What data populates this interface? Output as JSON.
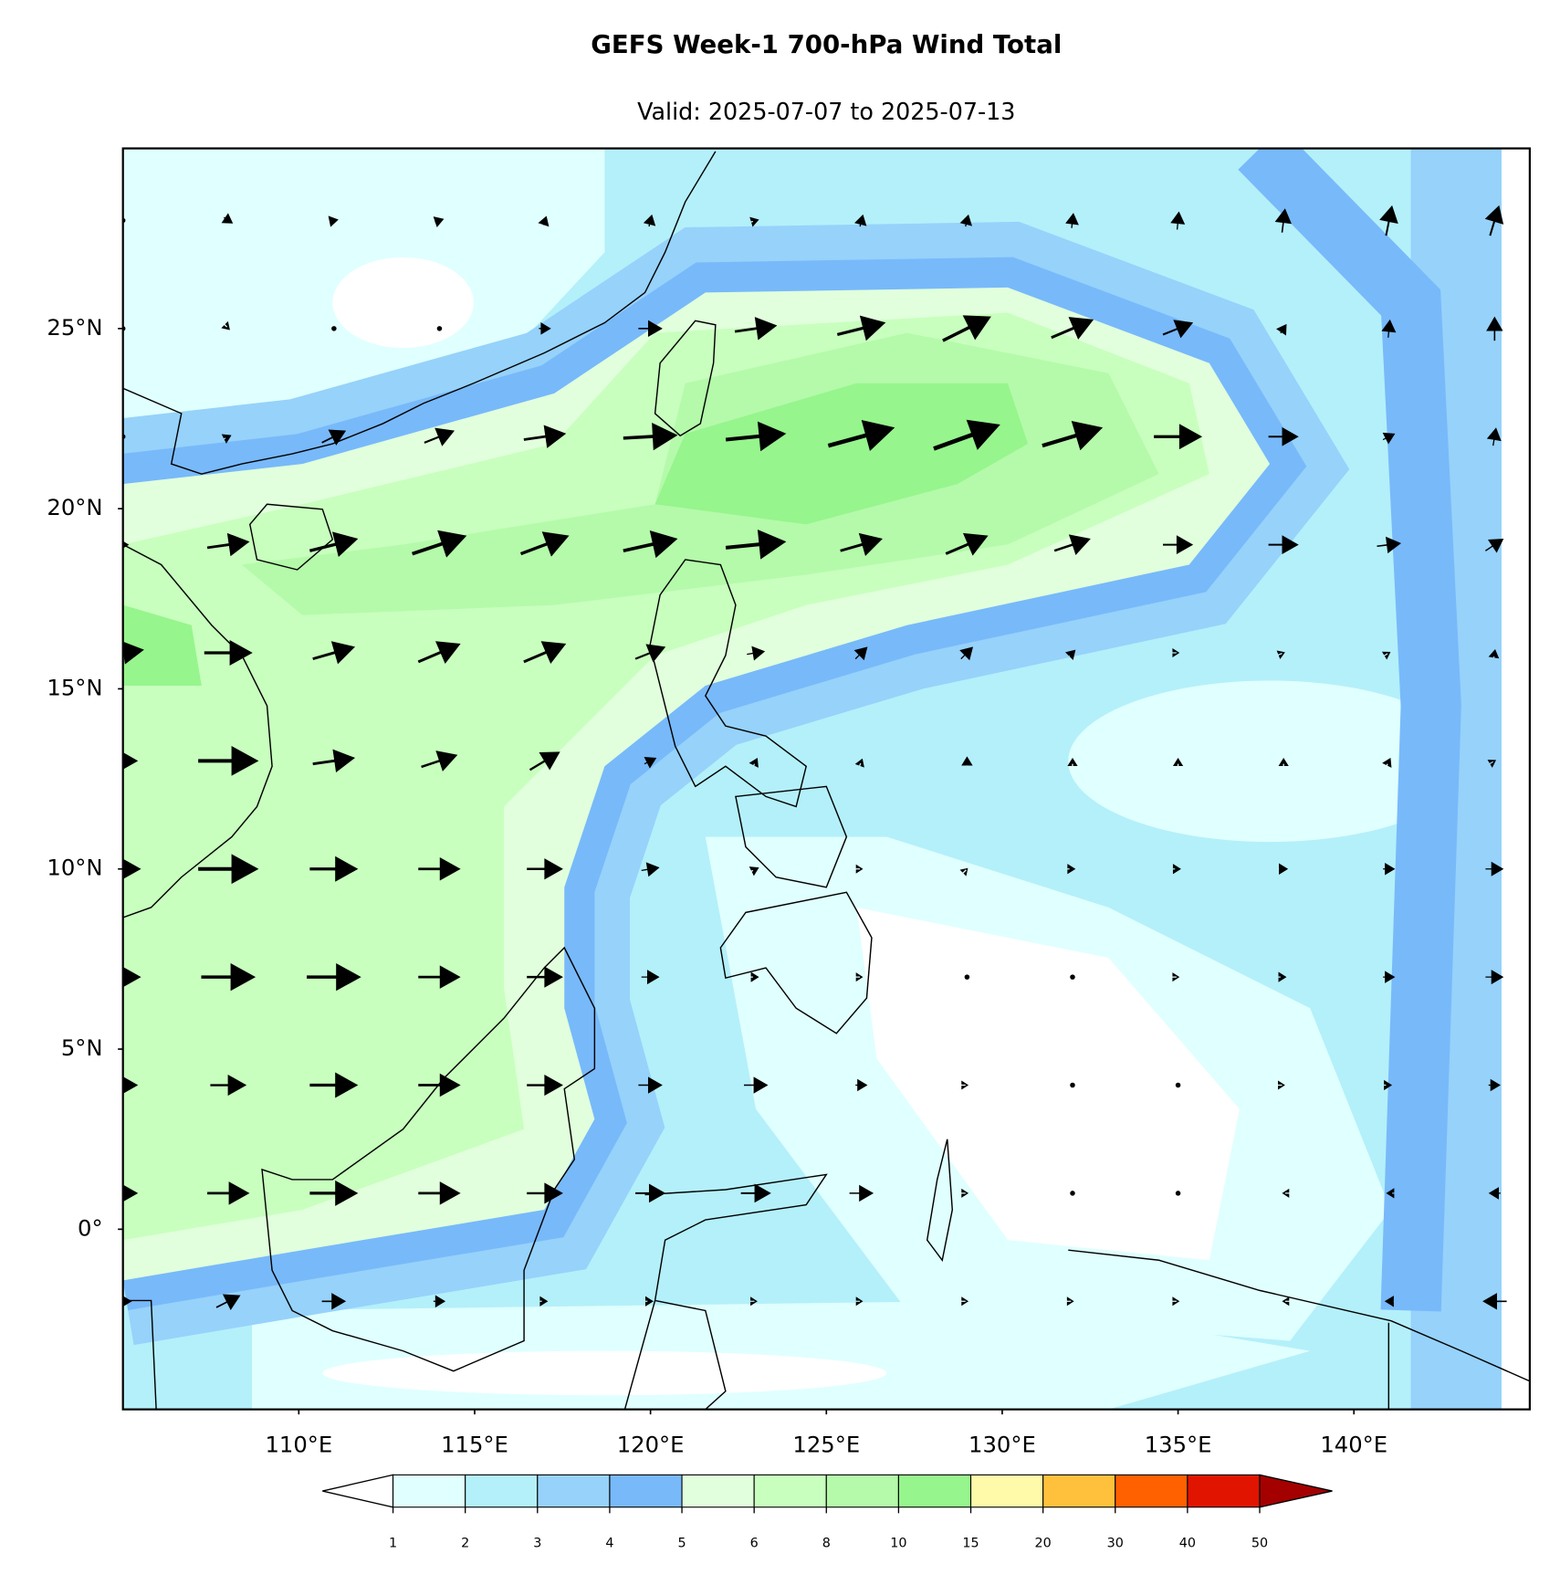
{
  "header": {
    "title": "GEFS Week-1 700-hPa Wind Total",
    "subtitle": "Valid: 2025-07-07 to 2025-07-13"
  },
  "map": {
    "xlim": [
      105,
      145
    ],
    "ylim": [
      -5,
      30
    ],
    "xticks": [
      {
        "value": 110,
        "label": "110°E"
      },
      {
        "value": 115,
        "label": "115°E"
      },
      {
        "value": 120,
        "label": "120°E"
      },
      {
        "value": 125,
        "label": "125°E"
      },
      {
        "value": 130,
        "label": "130°E"
      },
      {
        "value": 135,
        "label": "135°E"
      },
      {
        "value": 140,
        "label": "140°E"
      }
    ],
    "yticks": [
      {
        "value": 0,
        "label": "0°"
      },
      {
        "value": 5,
        "label": "5°N"
      },
      {
        "value": 10,
        "label": "10°N"
      },
      {
        "value": 15,
        "label": "15°N"
      },
      {
        "value": 20,
        "label": "20°N"
      },
      {
        "value": 25,
        "label": "25°N"
      }
    ]
  },
  "colorbar": {
    "levels": [
      1,
      2,
      3,
      4,
      5,
      6,
      8,
      10,
      15,
      20,
      30,
      40,
      50
    ],
    "colors": [
      "#ffffff",
      "#e0ffff",
      "#b4f0fa",
      "#96d2fa",
      "#78b9fa",
      "#e1ffdc",
      "#c8ffbe",
      "#b4faaa",
      "#96f58c",
      "#fffaaa",
      "#ffc03c",
      "#ff6000",
      "#e11400",
      "#a50000"
    ]
  },
  "wind": {
    "lons": [
      105,
      108,
      111,
      114,
      117,
      120,
      123,
      126,
      129,
      132,
      135,
      138,
      141,
      144
    ],
    "lats": [
      28,
      25,
      22,
      19,
      16,
      13,
      10,
      7,
      4,
      1,
      -2
    ],
    "u": [
      [
        0,
        1.5,
        1.5,
        1.5,
        0.5,
        0.5,
        1,
        0.5,
        0.5,
        0.3,
        0.3,
        0.5,
        1,
        1.5
      ],
      [
        0,
        0.5,
        0,
        0,
        2,
        4,
        7,
        8,
        8,
        7,
        5,
        1,
        0.3,
        0
      ],
      [
        0,
        1,
        4,
        5,
        7,
        9,
        10,
        11,
        11,
        10,
        8,
        5,
        2,
        0.5
      ],
      [
        2,
        7,
        8,
        9,
        8,
        9,
        10,
        7,
        7,
        6,
        5,
        5,
        4,
        3
      ],
      [
        7,
        8,
        7,
        7,
        7,
        5,
        3,
        2,
        2,
        1,
        0.5,
        0.5,
        0.5,
        0.2
      ],
      [
        5,
        10,
        7,
        6,
        5,
        2,
        0.5,
        0.3,
        0,
        0,
        0,
        0,
        0.5,
        0.5
      ],
      [
        6,
        10,
        8,
        7,
        6,
        3,
        1,
        0.5,
        0.3,
        1,
        1,
        1.5,
        2,
        3
      ],
      [
        6,
        9,
        9,
        7,
        6,
        3,
        1,
        0.5,
        0,
        0,
        0.5,
        1,
        2,
        3
      ],
      [
        5,
        6,
        8,
        7,
        6,
        4,
        4,
        2,
        0.5,
        0,
        0,
        0.5,
        1,
        2
      ],
      [
        5,
        7,
        8,
        7,
        6,
        5,
        5,
        4,
        0.5,
        0,
        0,
        -0.5,
        -1,
        -2
      ],
      [
        3,
        4,
        4,
        2,
        1,
        1,
        0.5,
        0.5,
        0.5,
        0.5,
        0.5,
        -0.5,
        -1.5,
        -4
      ]
    ],
    "v": [
      [
        0,
        -1,
        0.3,
        0.5,
        1.5,
        2,
        0.3,
        2,
        2,
        2.5,
        3,
        4,
        5,
        5
      ],
      [
        0,
        -0.5,
        0,
        0,
        0,
        0,
        1,
        2,
        4,
        3,
        2,
        1.5,
        3,
        4
      ],
      [
        0,
        0.5,
        2,
        2,
        1,
        0.5,
        1,
        3,
        4,
        3,
        0,
        0,
        1,
        3
      ],
      [
        0,
        1,
        2,
        3,
        3,
        2,
        1,
        2,
        3,
        2,
        0,
        0,
        0.5,
        2
      ],
      [
        1,
        0,
        2,
        3,
        3,
        2,
        0.5,
        2,
        2,
        1,
        0,
        0.2,
        0.3,
        1.2
      ],
      [
        0,
        0,
        1,
        2,
        3,
        1,
        1,
        0.8,
        1.5,
        1,
        1,
        1,
        1,
        0.3
      ],
      [
        0,
        0,
        0,
        0,
        0,
        0.5,
        0.5,
        0,
        0.3,
        0,
        0,
        0,
        0,
        0
      ],
      [
        0,
        0,
        0,
        0,
        0,
        0,
        0,
        0,
        0,
        0,
        0,
        0,
        0,
        0
      ],
      [
        0,
        0,
        0,
        0,
        0,
        0,
        0,
        0,
        0,
        0,
        0,
        0,
        0,
        0
      ],
      [
        0,
        0,
        0,
        0,
        0,
        0,
        0,
        0,
        0,
        0,
        0,
        0,
        0,
        0
      ],
      [
        0,
        2,
        0,
        0,
        0,
        0,
        0,
        0,
        0,
        0,
        0,
        0,
        0,
        0
      ]
    ]
  }
}
